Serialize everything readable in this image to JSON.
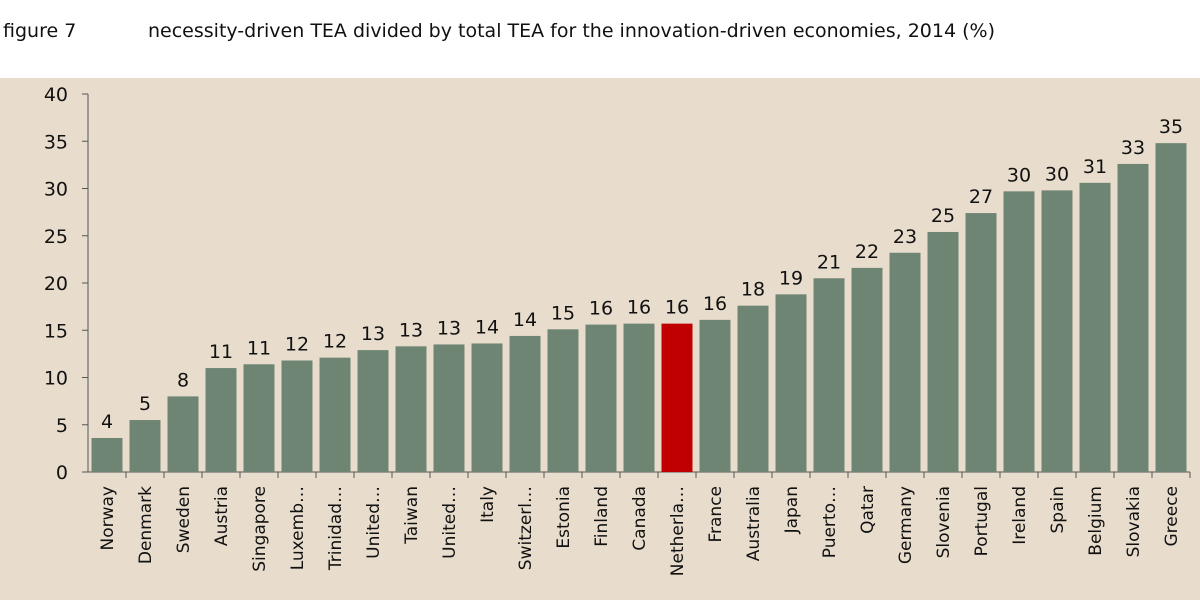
{
  "header": {
    "figure_label": "figure 7",
    "title": "necessity-driven TEA divided by total TEA for the innovation-driven economies, 2014 (%)"
  },
  "colors": {
    "bar": "#6f8574",
    "highlight": "#c00000",
    "panel_background": "#e8ddcd",
    "axis": "#555555"
  },
  "chart_data": {
    "type": "bar",
    "title": "necessity-driven TEA divided by total TEA for the innovation-driven economies, 2014 (%)",
    "xlabel": "",
    "ylabel": "",
    "ylim": [
      0,
      40
    ],
    "yticks": [
      0,
      5,
      10,
      15,
      20,
      25,
      30,
      35,
      40
    ],
    "grid": false,
    "legend": "none",
    "categories": [
      "Norway",
      "Denmark",
      "Sweden",
      "Austria",
      "Singapore",
      "Luxemb…",
      "Trinidad…",
      "United…",
      "Taiwan",
      "United…",
      "Italy",
      "Switzerl…",
      "Estonia",
      "Finland",
      "Canada",
      "Netherla…",
      "France",
      "Australia",
      "Japan",
      "Puerto…",
      "Qatar",
      "Germany",
      "Slovenia",
      "Portugal",
      "Ireland",
      "Spain",
      "Belgium",
      "Slovakia",
      "Greece"
    ],
    "values": [
      3.6,
      5.5,
      8.0,
      11.0,
      11.4,
      11.8,
      12.1,
      12.9,
      13.3,
      13.5,
      13.6,
      14.4,
      15.1,
      15.6,
      15.7,
      15.7,
      16.1,
      17.6,
      18.8,
      20.5,
      21.6,
      23.2,
      25.4,
      27.4,
      29.7,
      29.8,
      30.6,
      32.6,
      34.8
    ],
    "data_labels": [
      "4",
      "5",
      "8",
      "11",
      "11",
      "12",
      "12",
      "13",
      "13",
      "13",
      "14",
      "14",
      "15",
      "16",
      "16",
      "16",
      "16",
      "18",
      "19",
      "21",
      "22",
      "23",
      "25",
      "27",
      "30",
      "30",
      "31",
      "33",
      "35"
    ],
    "highlight_category": "Netherla…"
  }
}
